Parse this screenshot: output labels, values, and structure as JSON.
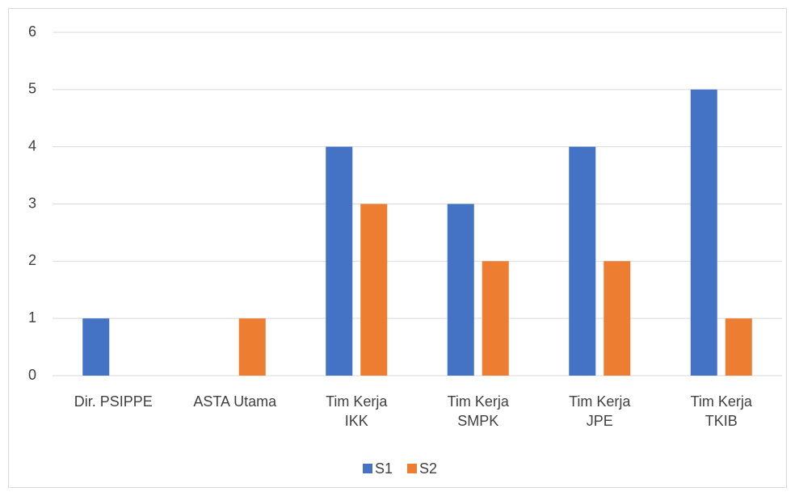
{
  "chart_data": {
    "type": "bar",
    "categories": [
      "Dir. PSIPPE",
      "ASTA Utama",
      "Tim Kerja\nIKK",
      "Tim Kerja\nSMPK",
      "Tim Kerja\nJPE",
      "Tim Kerja\nTKIB"
    ],
    "series": [
      {
        "name": "S1",
        "color": "#4472c4",
        "values": [
          1,
          0,
          4,
          3,
          4,
          5
        ]
      },
      {
        "name": "S2",
        "color": "#ed7d31",
        "values": [
          0,
          1,
          3,
          2,
          2,
          1
        ]
      }
    ],
    "ylim": [
      0,
      6
    ],
    "yticks": [
      0,
      1,
      2,
      3,
      4,
      5,
      6
    ],
    "grid": true,
    "legend": "bottom"
  }
}
